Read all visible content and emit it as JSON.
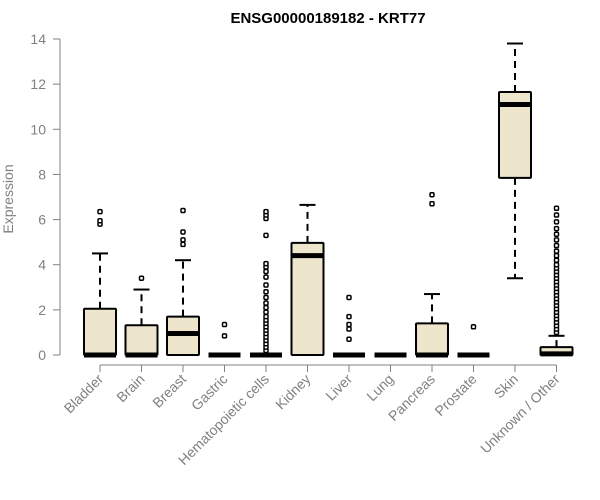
{
  "chart_data": {
    "type": "boxplot",
    "title": "ENSG00000189182 - KRT77",
    "xlabel": "",
    "ylabel": "Expression",
    "ylim": [
      0,
      14
    ],
    "yticks": [
      "0",
      "2",
      "4",
      "6",
      "8",
      "10",
      "12",
      "14"
    ],
    "box_fill": "#ede6cc",
    "categories": [
      "Bladder",
      "Brain",
      "Breast",
      "Gastric",
      "Hematopoietic cells",
      "Kidney",
      "Liver",
      "Lung",
      "Pancreas",
      "Prostate",
      "Skin",
      "Unknown / Other"
    ],
    "boxes": [
      {
        "min": 0,
        "q1": 0,
        "median": 0,
        "q3": 2.05,
        "max": 4.5,
        "outliers": [
          5.8,
          5.95,
          6.35
        ]
      },
      {
        "min": 0,
        "q1": 0,
        "median": 0,
        "q3": 1.32,
        "max": 2.9,
        "outliers": [
          3.4
        ]
      },
      {
        "min": 0,
        "q1": 0,
        "median": 0.95,
        "q3": 1.7,
        "max": 4.2,
        "outliers": [
          4.9,
          5.1,
          5.45,
          6.4
        ]
      },
      {
        "min": 0,
        "q1": 0,
        "median": 0,
        "q3": 0,
        "max": 0,
        "outliers": [
          0.85,
          1.35
        ]
      },
      {
        "min": 0,
        "q1": 0,
        "median": 0,
        "q3": 0,
        "max": 0,
        "outliers": [
          0.2,
          0.35,
          0.5,
          0.65,
          0.8,
          0.95,
          1.1,
          1.25,
          1.4,
          1.55,
          1.7,
          1.9,
          2.1,
          2.3,
          2.55,
          2.8,
          3.1,
          3.45,
          3.7,
          3.9,
          4.05,
          5.3,
          6.05,
          6.2,
          6.35
        ]
      },
      {
        "min": 0,
        "q1": 0,
        "median": 4.4,
        "q3": 4.97,
        "max": 6.65,
        "outliers": []
      },
      {
        "min": 0,
        "q1": 0,
        "median": 0,
        "q3": 0,
        "max": 0,
        "outliers": [
          0.7,
          1.15,
          1.35,
          1.7,
          2.55
        ]
      },
      {
        "min": 0,
        "q1": 0,
        "median": 0,
        "q3": 0,
        "max": 0,
        "outliers": []
      },
      {
        "min": 0,
        "q1": 0,
        "median": 0,
        "q3": 1.4,
        "max": 2.7,
        "outliers": [
          6.7,
          7.1
        ]
      },
      {
        "min": 0,
        "q1": 0,
        "median": 0,
        "q3": 0,
        "max": 0,
        "outliers": [
          1.25
        ]
      },
      {
        "min": 3.4,
        "q1": 7.85,
        "median": 11.1,
        "q3": 11.65,
        "max": 13.8,
        "outliers": []
      },
      {
        "min": 0,
        "q1": 0,
        "median": 0.05,
        "q3": 0.35,
        "max": 0.85,
        "outliers": [
          1.0,
          1.15,
          1.3,
          1.45,
          1.6,
          1.75,
          1.9,
          2.05,
          2.2,
          2.35,
          2.5,
          2.65,
          2.8,
          2.95,
          3.1,
          3.25,
          3.4,
          3.55,
          3.7,
          3.85,
          4.0,
          4.2,
          4.4,
          4.6,
          4.85,
          5.1,
          5.35,
          5.6,
          5.9,
          6.2,
          6.5
        ]
      }
    ]
  }
}
